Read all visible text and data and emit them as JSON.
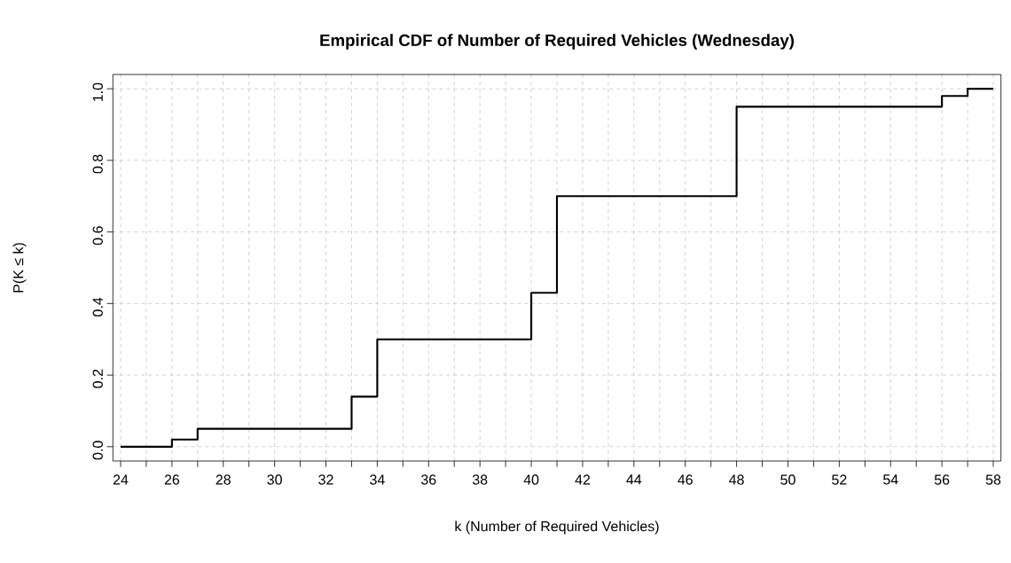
{
  "chart_data": {
    "type": "step",
    "title": "Empirical CDF of Number of Required Vehicles (Wednesday)",
    "xlabel": "k (Number of Required Vehicles)",
    "ylabel": "P(K ≤ k)",
    "x": [
      24,
      26,
      27,
      33,
      34,
      40,
      41,
      48,
      56,
      57,
      58
    ],
    "values": [
      0,
      0.02,
      0.05,
      0.14,
      0.3,
      0.43,
      0.7,
      0.95,
      0.98,
      1.0,
      1.0
    ],
    "color": "#000000",
    "line_style": "solid",
    "marker": "none",
    "grid": true,
    "xlim": [
      23.7,
      58.3
    ],
    "ylim": [
      -0.04,
      1.04
    ],
    "xticks": [
      24,
      {
        "value": 25,
        "label": null
      },
      26,
      {
        "value": 27,
        "label": null
      },
      28,
      {
        "value": 29,
        "label": null
      },
      30,
      {
        "value": 31,
        "label": null
      },
      32,
      {
        "value": 33,
        "label": null
      },
      34,
      {
        "value": 35,
        "label": null
      },
      36,
      {
        "value": 37,
        "label": null
      },
      38,
      {
        "value": 39,
        "label": null
      },
      40,
      {
        "value": 41,
        "label": null
      },
      42,
      {
        "value": 43,
        "label": null
      },
      44,
      {
        "value": 45,
        "label": null
      },
      46,
      {
        "value": 47,
        "label": null
      },
      48,
      {
        "value": 49,
        "label": null
      },
      50,
      {
        "value": 51,
        "label": null
      },
      52,
      {
        "value": 53,
        "label": null
      },
      54,
      {
        "value": 55,
        "label": null
      },
      56,
      {
        "value": 57,
        "label": null
      },
      58
    ],
    "yticks": [
      {
        "value": 0,
        "label": "0.0"
      },
      {
        "value": 0.2,
        "label": "0.2"
      },
      {
        "value": 0.4,
        "label": "0.4"
      },
      {
        "value": 0.6,
        "label": "0.6"
      },
      {
        "value": 0.8,
        "label": "0.8"
      },
      {
        "value": 1,
        "label": "1.0"
      }
    ]
  }
}
